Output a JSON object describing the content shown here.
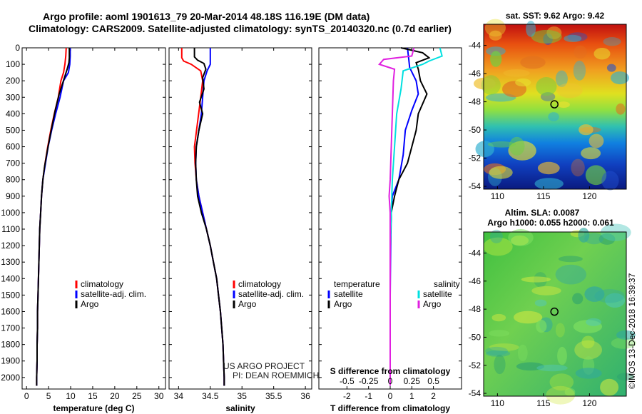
{
  "header": {
    "title_line1": "Argo profile: aoml 1901613_79 20-Mar-2014 48.18S 116.19E (DM data)",
    "title_line2": "Climatology: CARS2009. Satellite-adjusted climatology: synTS_20140320.nc (0.7d earlier)"
  },
  "colors": {
    "climatology": "#ff0000",
    "satellite_adj": "#0000ff",
    "argo": "#000000",
    "salinity_satellite": "#00e0e0",
    "salinity_argo": "#e020e0"
  },
  "chart_data": [
    {
      "type": "line",
      "panel": "temperature",
      "xlabel": "temperature (deg C)",
      "ylabel": "",
      "xlim": [
        -1,
        31.5
      ],
      "ylim": [
        2070,
        0
      ],
      "x_ticks": [
        0,
        5,
        10,
        15,
        20,
        25,
        30
      ],
      "y_ticks": [
        0,
        100,
        200,
        300,
        400,
        500,
        600,
        700,
        800,
        900,
        1000,
        1100,
        1200,
        1300,
        1400,
        1500,
        1600,
        1700,
        1800,
        1900,
        2000
      ],
      "legend": [
        "climatology",
        "satellite-adj. clim.",
        "Argo"
      ],
      "series": [
        {
          "name": "climatology",
          "color": "#ff0000",
          "points": [
            [
              9.0,
              0
            ],
            [
              8.9,
              50
            ],
            [
              8.7,
              100
            ],
            [
              8.4,
              150
            ],
            [
              7.8,
              200
            ],
            [
              7.2,
              300
            ],
            [
              6.3,
              400
            ],
            [
              5.5,
              500
            ],
            [
              4.8,
              600
            ],
            [
              4.2,
              700
            ],
            [
              3.7,
              800
            ],
            [
              3.4,
              900
            ],
            [
              3.2,
              1000
            ],
            [
              3.0,
              1100
            ],
            [
              2.9,
              1200
            ],
            [
              2.8,
              1300
            ],
            [
              2.7,
              1400
            ],
            [
              2.6,
              1500
            ],
            [
              2.5,
              1600
            ],
            [
              2.5,
              1700
            ],
            [
              2.4,
              1800
            ],
            [
              2.4,
              1900
            ],
            [
              2.3,
              2000
            ],
            [
              2.3,
              2050
            ]
          ]
        },
        {
          "name": "satellite-adj. clim.",
          "color": "#0000ff",
          "points": [
            [
              9.9,
              0
            ],
            [
              9.9,
              50
            ],
            [
              9.8,
              100
            ],
            [
              9.5,
              150
            ],
            [
              8.4,
              200
            ],
            [
              7.6,
              300
            ],
            [
              6.6,
              400
            ],
            [
              5.7,
              500
            ],
            [
              4.9,
              600
            ],
            [
              4.3,
              700
            ],
            [
              3.7,
              800
            ],
            [
              3.4,
              900
            ],
            [
              3.2,
              1000
            ],
            [
              3.0,
              1100
            ],
            [
              2.9,
              1200
            ],
            [
              2.8,
              1300
            ],
            [
              2.7,
              1400
            ],
            [
              2.6,
              1500
            ],
            [
              2.5,
              1600
            ],
            [
              2.5,
              1700
            ],
            [
              2.4,
              1800
            ],
            [
              2.4,
              1900
            ],
            [
              2.3,
              2000
            ],
            [
              2.3,
              2050
            ]
          ]
        },
        {
          "name": "Argo",
          "color": "#000000",
          "points": [
            [
              9.7,
              0
            ],
            [
              9.7,
              60
            ],
            [
              9.6,
              90
            ],
            [
              9.2,
              130
            ],
            [
              8.6,
              180
            ],
            [
              7.4,
              280
            ],
            [
              6.5,
              380
            ],
            [
              5.6,
              500
            ],
            [
              4.8,
              610
            ],
            [
              4.1,
              720
            ],
            [
              3.7,
              800
            ],
            [
              3.4,
              900
            ],
            [
              3.2,
              1000
            ],
            [
              3.0,
              1100
            ],
            [
              2.9,
              1200
            ],
            [
              2.8,
              1300
            ],
            [
              2.7,
              1400
            ],
            [
              2.6,
              1500
            ],
            [
              2.5,
              1600
            ],
            [
              2.5,
              1700
            ],
            [
              2.4,
              1800
            ],
            [
              2.4,
              1900
            ],
            [
              2.3,
              2000
            ],
            [
              2.3,
              2050
            ]
          ]
        }
      ]
    },
    {
      "type": "line",
      "panel": "salinity",
      "xlabel": "salinity",
      "ylabel": "",
      "xlim": [
        33.85,
        36.1
      ],
      "ylim": [
        2070,
        0
      ],
      "x_ticks": [
        34,
        34.5,
        35,
        35.5,
        36
      ],
      "legend": [
        "climatology",
        "satellite-adj. clim.",
        "Argo"
      ],
      "annotation_line1": "US ARGO PROJECT",
      "annotation_line2": "PI: DEAN ROEMMICH",
      "series": [
        {
          "name": "climatology",
          "color": "#ff0000",
          "points": [
            [
              34.05,
              0
            ],
            [
              34.05,
              60
            ],
            [
              34.08,
              80
            ],
            [
              34.2,
              100
            ],
            [
              34.35,
              140
            ],
            [
              34.38,
              200
            ],
            [
              34.35,
              300
            ],
            [
              34.3,
              450
            ],
            [
              34.25,
              600
            ],
            [
              34.26,
              700
            ],
            [
              34.28,
              800
            ],
            [
              34.32,
              900
            ],
            [
              34.38,
              1000
            ],
            [
              34.44,
              1100
            ],
            [
              34.5,
              1200
            ],
            [
              34.55,
              1300
            ],
            [
              34.6,
              1400
            ],
            [
              34.63,
              1500
            ],
            [
              34.66,
              1600
            ],
            [
              34.68,
              1700
            ],
            [
              34.7,
              1800
            ],
            [
              34.71,
              1900
            ],
            [
              34.72,
              2000
            ],
            [
              34.72,
              2050
            ]
          ]
        },
        {
          "name": "satellite-adj. clim.",
          "color": "#0000ff",
          "points": [
            [
              34.5,
              0
            ],
            [
              34.5,
              60
            ],
            [
              34.5,
              100
            ],
            [
              34.45,
              140
            ],
            [
              34.4,
              200
            ],
            [
              34.38,
              300
            ],
            [
              34.36,
              400
            ],
            [
              34.32,
              500
            ],
            [
              34.28,
              600
            ],
            [
              34.27,
              700
            ],
            [
              34.28,
              800
            ],
            [
              34.32,
              900
            ],
            [
              34.38,
              1000
            ],
            [
              34.44,
              1100
            ],
            [
              34.5,
              1200
            ],
            [
              34.55,
              1300
            ],
            [
              34.6,
              1400
            ],
            [
              34.63,
              1500
            ],
            [
              34.66,
              1600
            ],
            [
              34.68,
              1700
            ],
            [
              34.7,
              1800
            ],
            [
              34.71,
              1900
            ],
            [
              34.72,
              2000
            ],
            [
              34.72,
              2050
            ]
          ]
        },
        {
          "name": "Argo",
          "color": "#000000",
          "points": [
            [
              34.25,
              0
            ],
            [
              34.25,
              55
            ],
            [
              34.3,
              75
            ],
            [
              34.4,
              95
            ],
            [
              34.43,
              130
            ],
            [
              34.38,
              180
            ],
            [
              34.4,
              250
            ],
            [
              34.33,
              330
            ],
            [
              34.38,
              400
            ],
            [
              34.32,
              500
            ],
            [
              34.28,
              600
            ],
            [
              34.27,
              700
            ],
            [
              34.28,
              800
            ],
            [
              34.3,
              900
            ],
            [
              34.36,
              1000
            ],
            [
              34.44,
              1100
            ],
            [
              34.5,
              1200
            ],
            [
              34.55,
              1300
            ],
            [
              34.6,
              1400
            ],
            [
              34.63,
              1500
            ],
            [
              34.66,
              1600
            ],
            [
              34.68,
              1700
            ],
            [
              34.7,
              1800
            ],
            [
              34.71,
              1900
            ],
            [
              34.72,
              2000
            ],
            [
              34.72,
              2050
            ]
          ]
        }
      ]
    },
    {
      "type": "line",
      "panel": "difference",
      "xlabel": "T difference from climatology",
      "xlabel_top": "S difference from climatology",
      "ylabel": "",
      "xlim": [
        -3.3,
        3.3
      ],
      "ylim": [
        2070,
        0
      ],
      "x_ticks_T": [
        -2,
        -1,
        0,
        1,
        2
      ],
      "x_ticks_S": [
        "-0.5",
        "-0.25",
        "0",
        "0.25",
        "0.5"
      ],
      "legend_left_title": "temperature",
      "legend_right_title": "salinity",
      "legend_left": [
        "satellite",
        "Argo"
      ],
      "legend_right": [
        "satellite",
        "Argo"
      ],
      "series": [
        {
          "name": "temperature satellite",
          "color": "#0000ff",
          "points": [
            [
              0.8,
              0
            ],
            [
              0.85,
              60
            ],
            [
              0.9,
              120
            ],
            [
              1.2,
              200
            ],
            [
              1.3,
              280
            ],
            [
              1.0,
              380
            ],
            [
              0.7,
              500
            ],
            [
              0.6,
              650
            ],
            [
              0.4,
              800
            ],
            [
              0.1,
              900
            ],
            [
              0.05,
              1000
            ],
            [
              0.02,
              1200
            ],
            [
              0.0,
              1500
            ],
            [
              0.0,
              2050
            ]
          ]
        },
        {
          "name": "temperature Argo",
          "color": "#000000",
          "points": [
            [
              0.5,
              0
            ],
            [
              1.5,
              30
            ],
            [
              1.8,
              60
            ],
            [
              1.2,
              90
            ],
            [
              1.3,
              130
            ],
            [
              1.4,
              200
            ],
            [
              1.7,
              280
            ],
            [
              1.3,
              400
            ],
            [
              1.2,
              500
            ],
            [
              1.0,
              600
            ],
            [
              0.8,
              700
            ],
            [
              0.4,
              800
            ],
            [
              0.2,
              900
            ],
            [
              0.05,
              1000
            ],
            [
              0.0,
              1200
            ],
            [
              0.0,
              2050
            ]
          ]
        },
        {
          "name": "salinity satellite",
          "color": "#00e0e0",
          "points": [
            [
              2.3,
              0
            ],
            [
              2.4,
              50
            ],
            [
              1.8,
              80
            ],
            [
              1.5,
              100
            ],
            [
              0.6,
              140
            ],
            [
              0.5,
              250
            ],
            [
              0.3,
              400
            ],
            [
              0.2,
              600
            ],
            [
              0.1,
              800
            ],
            [
              0.05,
              1000
            ],
            [
              0.0,
              1200
            ],
            [
              0.0,
              2050
            ]
          ]
        },
        {
          "name": "salinity Argo",
          "color": "#e020e0",
          "points": [
            [
              1.1,
              0
            ],
            [
              1.0,
              50
            ],
            [
              -0.3,
              70
            ],
            [
              -0.5,
              100
            ],
            [
              0.2,
              130
            ],
            [
              0.15,
              200
            ],
            [
              0.1,
              400
            ],
            [
              0.05,
              600
            ],
            [
              0.0,
              800
            ],
            [
              -0.05,
              900
            ],
            [
              0.0,
              1000
            ],
            [
              0.0,
              2050
            ]
          ]
        }
      ]
    },
    {
      "type": "heatmap",
      "panel": "sst_map",
      "title": "sat. SST: 9.62 Argo: 9.42",
      "xlim": [
        108.5,
        124
      ],
      "ylim": [
        -54.2,
        -42.5
      ],
      "x_ticks": [
        110,
        115,
        120
      ],
      "y_ticks": [
        -44,
        -46,
        -48,
        -50,
        -52,
        -54
      ],
      "marker": [
        116.19,
        -48.18
      ]
    },
    {
      "type": "heatmap",
      "panel": "sla_map",
      "title_line1": "Altim. SLA: 0.0087",
      "title_line2": "Argo h1000: 0.055 h2000: 0.061",
      "xlim": [
        108.5,
        124
      ],
      "ylim": [
        -54.2,
        -42.5
      ],
      "x_ticks": [
        110,
        115,
        120
      ],
      "y_ticks": [
        -44,
        -46,
        -48,
        -50,
        -52,
        -54
      ],
      "marker": [
        116.19,
        -48.18
      ]
    }
  ],
  "footer": {
    "stamp": "©IMOS 13-Dec-2018 16:39:37"
  }
}
